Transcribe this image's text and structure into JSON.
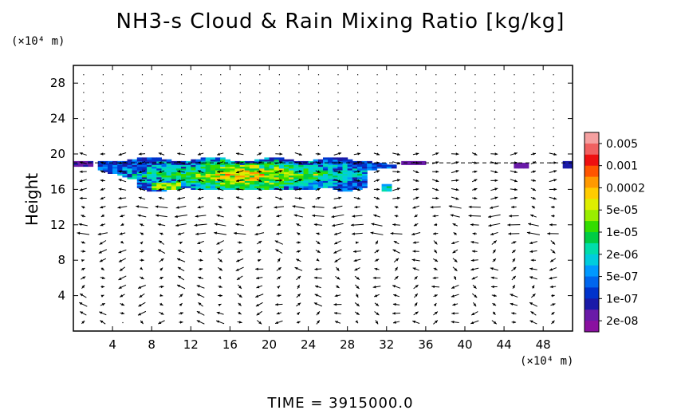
{
  "chart_data": {
    "type": "heatmap",
    "title": "NH3-s Cloud & Rain Mixing Ratio [kg/kg]",
    "ylabel": "Height",
    "xunit": "(×10⁴ m)",
    "yunit": "(×10⁴ m)",
    "xlim": [
      0,
      51
    ],
    "ylim": [
      0,
      30
    ],
    "xticks": [
      "4",
      "8",
      "12",
      "16",
      "20",
      "24",
      "28",
      "32",
      "36",
      "40",
      "44",
      "48"
    ],
    "yticks": [
      "4",
      "8",
      "12",
      "16",
      "20",
      "24",
      "28"
    ],
    "time_label": "TIME = 3915000.0",
    "colorbar": {
      "labels": [
        "0.005",
        "0.001",
        "0.0002",
        "5e-05",
        "1e-05",
        "2e-06",
        "5e-07",
        "1e-07",
        "2e-08"
      ],
      "colors": [
        "#f5a0a0",
        "#f06060",
        "#ee1010",
        "#ff5500",
        "#ff9900",
        "#ffcc00",
        "#ddee00",
        "#99ee00",
        "#33dd00",
        "#00cc44",
        "#00ddaa",
        "#00ccdd",
        "#0099ff",
        "#0066ee",
        "#0033cc",
        "#1a1aa8",
        "#6a1aa8",
        "#8a10a0"
      ]
    },
    "regions": [
      {
        "name": "main-cloud",
        "x_range": [
          2,
          33
        ],
        "y_range": [
          15.8,
          19.7
        ],
        "peak": "0.001"
      },
      {
        "name": "cloud-patch-32",
        "x_range": [
          31.5,
          32.5
        ],
        "y_range": [
          15.8,
          16.6
        ],
        "peak": "1e-05"
      },
      {
        "name": "thin-layer-left",
        "x_range": [
          0,
          2
        ],
        "y_range": [
          18.5,
          19.2
        ],
        "peak": "2e-08"
      },
      {
        "name": "thin-layer-right",
        "x_range": [
          33.5,
          51
        ],
        "y_range": [
          18.6,
          19.3
        ],
        "peak": "2e-08"
      }
    ]
  }
}
